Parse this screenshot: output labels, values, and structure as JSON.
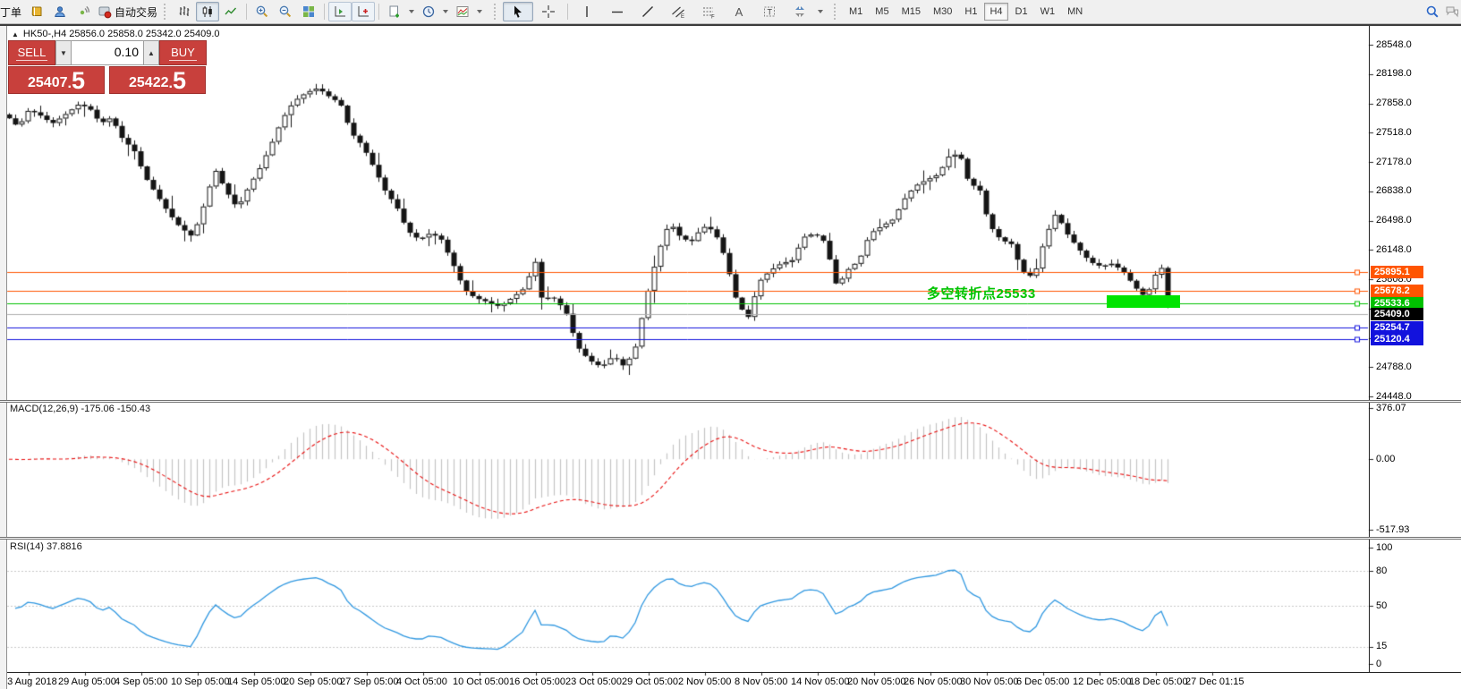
{
  "toolbar": {
    "order_label": "丁单",
    "autotrading_label": "自动交易",
    "timeframes": [
      "M1",
      "M5",
      "M15",
      "M30",
      "H1",
      "H4",
      "D1",
      "W1",
      "MN"
    ],
    "active_timeframe": "H4"
  },
  "chart": {
    "collapse_glyph": "▲",
    "symbol_line": "HK50-,H4  25856.0 25858.0 25342.0 25409.0",
    "trade": {
      "sell": "SELL",
      "buy": "BUY",
      "volume": "0.10",
      "sell_big": "25407",
      "sell_frac": "5",
      "buy_big": "25422",
      "buy_frac": "5"
    },
    "annotation": {
      "text": "多空转折点25533",
      "color": "#00C400"
    },
    "highlight_color": "#00E400",
    "price_ticks": [
      "28548.0",
      "28198.0",
      "27858.0",
      "27518.0",
      "27178.0",
      "26838.0",
      "26498.0",
      "26148.0",
      "25808.0",
      "25468.0",
      "25128.0",
      "24788.0",
      "24448.0"
    ],
    "hlines": [
      {
        "label": "25895.1",
        "price": 25895.1,
        "color": "#FF5500"
      },
      {
        "label": "25678.2",
        "price": 25678.2,
        "color": "#FF5500"
      },
      {
        "label": "25533.6",
        "price": 25533.6,
        "color": "#00C000"
      },
      {
        "label": "25254.7",
        "price": 25254.7,
        "color": "#1212DD"
      },
      {
        "label": "25120.4",
        "price": 25120.4,
        "color": "#1212DD"
      }
    ],
    "bid": {
      "label": "25409.0",
      "price": 25409.0,
      "line_color": "#ADADAD",
      "box_color": "#000000"
    },
    "chart_data": {
      "type": "candlestick",
      "symbol": "HK50-",
      "period": "H4",
      "ohlc_display": {
        "open": "25856.0",
        "high": "25858.0",
        "low": "25342.0",
        "close": "25409.0"
      },
      "y_axis": {
        "max": 28548,
        "min": 24448
      },
      "price_path_anchors": [
        [
          8,
          27711
        ],
        [
          20,
          27586
        ],
        [
          32,
          27794
        ],
        [
          45,
          27722
        ],
        [
          58,
          27628
        ],
        [
          72,
          27732
        ],
        [
          88,
          27857
        ],
        [
          100,
          27805
        ],
        [
          112,
          27628
        ],
        [
          124,
          27701
        ],
        [
          136,
          27462
        ],
        [
          150,
          27306
        ],
        [
          162,
          27004
        ],
        [
          175,
          26796
        ],
        [
          188,
          26588
        ],
        [
          200,
          26432
        ],
        [
          215,
          26307
        ],
        [
          228,
          26692
        ],
        [
          240,
          27098
        ],
        [
          252,
          26848
        ],
        [
          265,
          26640
        ],
        [
          278,
          26900
        ],
        [
          290,
          27108
        ],
        [
          302,
          27368
        ],
        [
          315,
          27680
        ],
        [
          328,
          27888
        ],
        [
          342,
          27992
        ],
        [
          355,
          28044
        ],
        [
          368,
          27940
        ],
        [
          380,
          27867
        ],
        [
          392,
          27524
        ],
        [
          405,
          27368
        ],
        [
          418,
          27108
        ],
        [
          430,
          26848
        ],
        [
          443,
          26661
        ],
        [
          455,
          26380
        ],
        [
          468,
          26276
        ],
        [
          480,
          26349
        ],
        [
          492,
          26297
        ],
        [
          505,
          26016
        ],
        [
          518,
          25704
        ],
        [
          530,
          25600
        ],
        [
          545,
          25548
        ],
        [
          558,
          25496
        ],
        [
          572,
          25600
        ],
        [
          585,
          25704
        ],
        [
          598,
          26016
        ],
        [
          605,
          25600
        ],
        [
          618,
          25600
        ],
        [
          632,
          25444
        ],
        [
          645,
          25028
        ],
        [
          658,
          24872
        ],
        [
          672,
          24789
        ],
        [
          685,
          24924
        ],
        [
          698,
          24789
        ],
        [
          710,
          25028
        ],
        [
          722,
          25600
        ],
        [
          735,
          26120
        ],
        [
          748,
          26484
        ],
        [
          760,
          26307
        ],
        [
          772,
          26245
        ],
        [
          785,
          26432
        ],
        [
          798,
          26380
        ],
        [
          810,
          26068
        ],
        [
          822,
          25600
        ],
        [
          835,
          25340
        ],
        [
          848,
          25787
        ],
        [
          860,
          25912
        ],
        [
          872,
          25995
        ],
        [
          885,
          26037
        ],
        [
          898,
          26307
        ],
        [
          910,
          26349
        ],
        [
          922,
          26245
        ],
        [
          935,
          25725
        ],
        [
          948,
          25933
        ],
        [
          960,
          26037
        ],
        [
          972,
          26349
        ],
        [
          985,
          26432
        ],
        [
          998,
          26515
        ],
        [
          1010,
          26744
        ],
        [
          1022,
          26900
        ],
        [
          1035,
          26973
        ],
        [
          1048,
          27035
        ],
        [
          1060,
          27243
        ],
        [
          1072,
          27285
        ],
        [
          1082,
          26952
        ],
        [
          1095,
          26848
        ],
        [
          1105,
          26453
        ],
        [
          1118,
          26276
        ],
        [
          1130,
          26224
        ],
        [
          1142,
          25912
        ],
        [
          1155,
          25829
        ],
        [
          1168,
          26307
        ],
        [
          1180,
          26588
        ],
        [
          1192,
          26349
        ],
        [
          1205,
          26172
        ],
        [
          1218,
          26016
        ],
        [
          1230,
          25964
        ],
        [
          1242,
          25995
        ],
        [
          1255,
          25912
        ],
        [
          1268,
          25725
        ],
        [
          1280,
          25600
        ],
        [
          1292,
          25891
        ],
        [
          1300,
          25964
        ],
        [
          1306,
          25409
        ]
      ]
    }
  },
  "macd": {
    "label": "MACD(12,26,9) -175.06 -150.43",
    "params": "12,26,9",
    "main_value": -175.06,
    "signal_value": -150.43,
    "axis_max": "376.07",
    "axis_zero": "0.00",
    "axis_min": "-517.93",
    "axis_values": [
      376.07,
      0,
      -517.93
    ],
    "histogram_color": "#C4C4C4",
    "signal_color": "#E81010"
  },
  "rsi": {
    "label": "RSI(14) 37.8816",
    "period": 14,
    "value": 37.8816,
    "axis": [
      "100",
      "80",
      "50",
      "15",
      "0"
    ],
    "axis_values": [
      100,
      80,
      50,
      15,
      0
    ],
    "levels": [
      80,
      50,
      15
    ],
    "line_color": "#2F97E0"
  },
  "time_axis": {
    "labels": [
      "23 Aug 2018",
      "29 Aug 05:00",
      "4 Sep 05:00",
      "10 Sep 05:00",
      "14 Sep 05:00",
      "20 Sep 05:00",
      "27 Sep 05:00",
      "4 Oct 05:00",
      "10 Oct 05:00",
      "16 Oct 05:00",
      "23 Oct 05:00",
      "29 Oct 05:00",
      "2 Nov 05:00",
      "8 Nov 05:00",
      "14 Nov 05:00",
      "20 Nov 05:00",
      "26 Nov 05:00",
      "30 Nov 05:00",
      "6 Dec 05:00",
      "12 Dec 05:00",
      "18 Dec 05:00",
      "27 Dec 01:15"
    ]
  }
}
